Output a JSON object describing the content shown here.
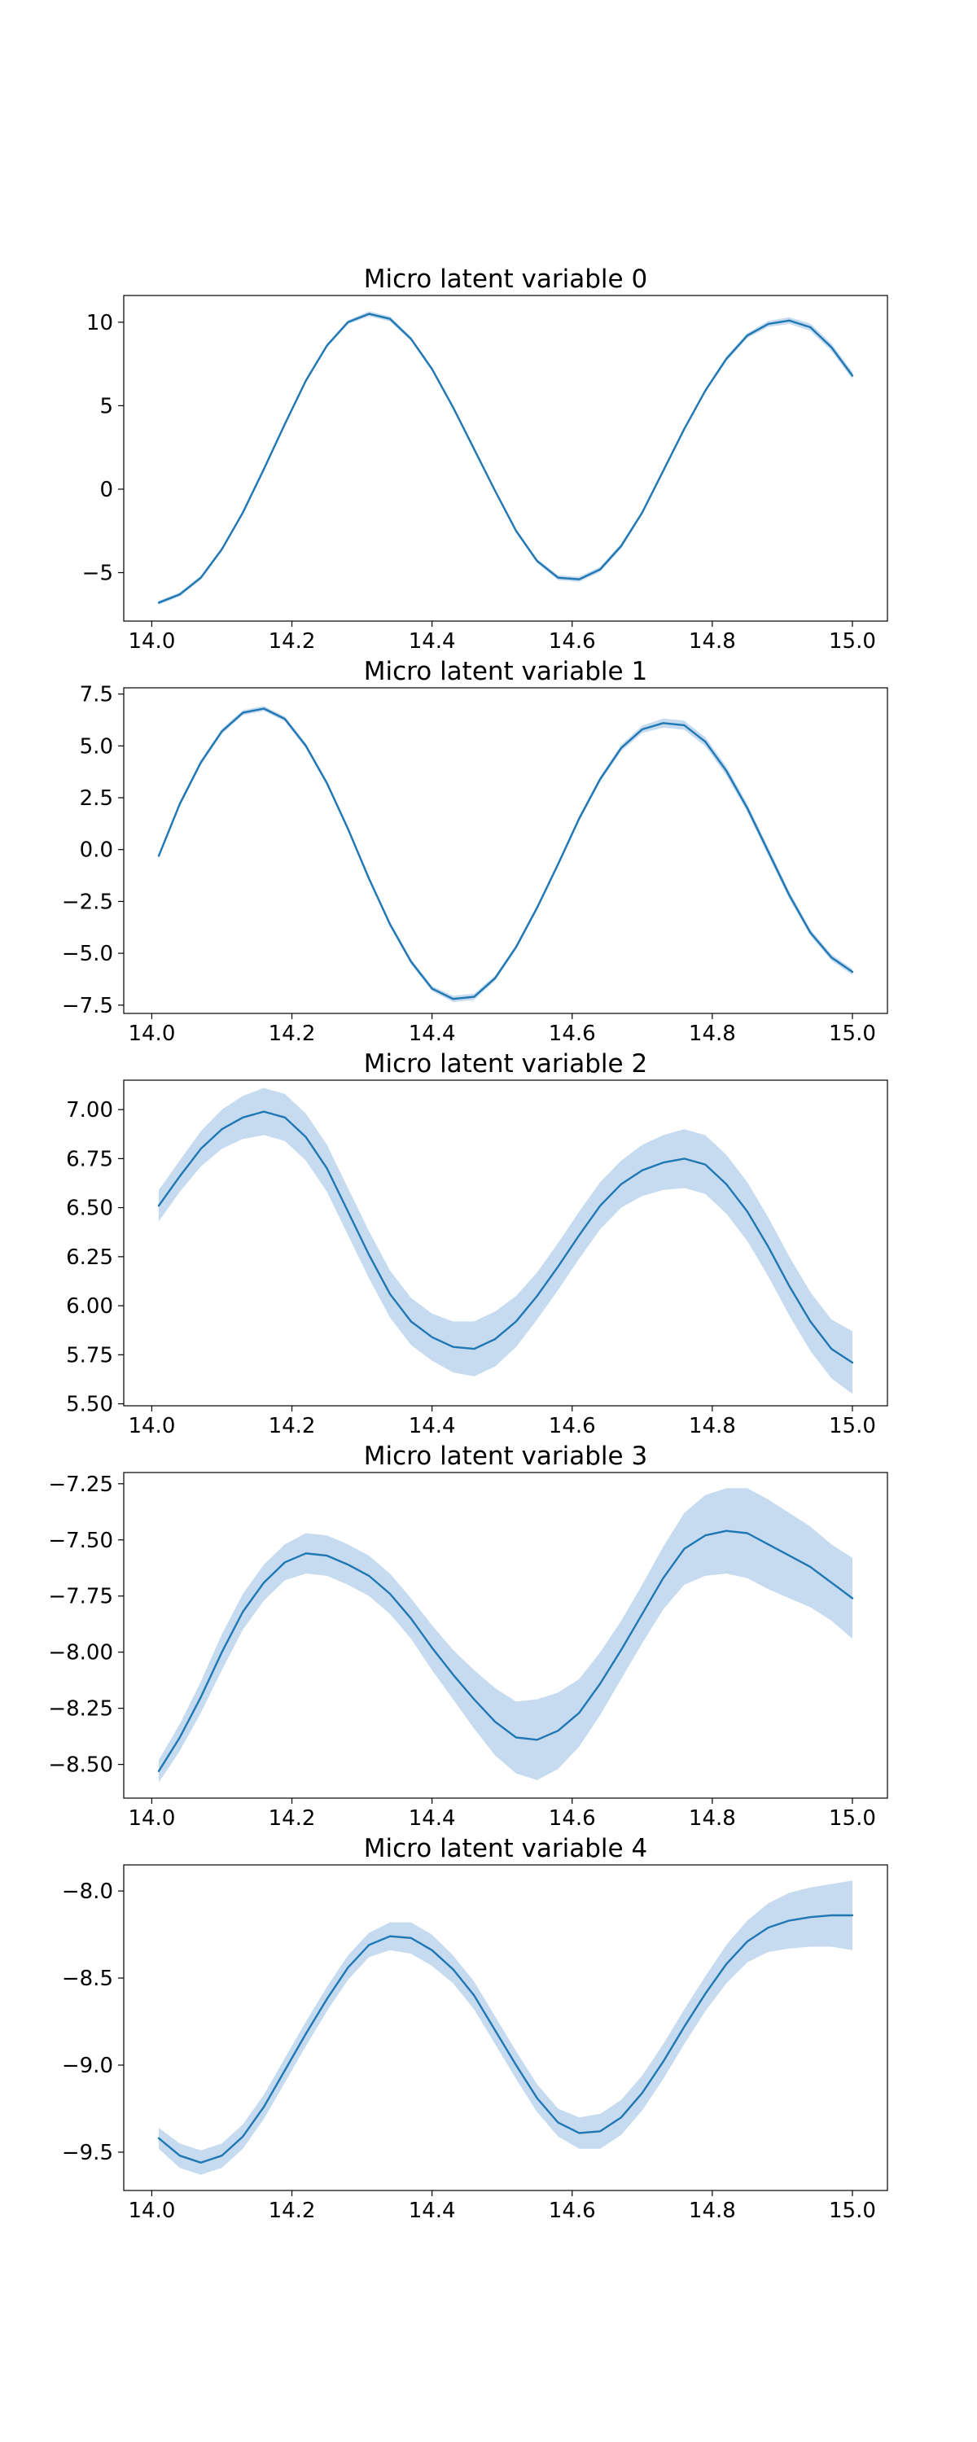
{
  "chart_data": [
    {
      "type": "line",
      "title": "Micro latent variable 0",
      "xlabel": "",
      "ylabel": "",
      "xlim": [
        13.96,
        15.05
      ],
      "ylim": [
        -7.9,
        11.6
      ],
      "xticks": [
        14.0,
        14.2,
        14.4,
        14.6,
        14.8,
        15.0
      ],
      "xtick_labels": [
        "14.0",
        "14.2",
        "14.4",
        "14.6",
        "14.8",
        "15.0"
      ],
      "yticks": [
        10,
        5,
        0,
        -5
      ],
      "ytick_labels": [
        "10",
        "5",
        "0",
        "−5"
      ],
      "grid": false,
      "band": true,
      "series": [
        {
          "x": [
            14.01,
            14.04,
            14.07,
            14.1,
            14.13,
            14.16,
            14.19,
            14.22,
            14.25,
            14.28,
            14.31,
            14.34,
            14.37,
            14.4,
            14.43,
            14.46,
            14.49,
            14.52,
            14.55,
            14.58,
            14.61,
            14.64,
            14.67,
            14.7,
            14.73,
            14.76,
            14.79,
            14.82,
            14.85,
            14.88,
            14.91,
            14.94,
            14.97,
            15.0
          ],
          "y": [
            -6.8,
            -6.3,
            -5.3,
            -3.6,
            -1.4,
            1.2,
            3.9,
            6.5,
            8.6,
            10.0,
            10.5,
            10.2,
            9.0,
            7.2,
            4.9,
            2.4,
            -0.1,
            -2.5,
            -4.3,
            -5.3,
            -5.4,
            -4.8,
            -3.4,
            -1.4,
            1.1,
            3.6,
            5.9,
            7.8,
            9.2,
            9.9,
            10.1,
            9.7,
            8.5,
            6.8
          ],
          "band_halfwidth": [
            0.12,
            0.12,
            0.12,
            0.12,
            0.12,
            0.12,
            0.12,
            0.12,
            0.12,
            0.12,
            0.15,
            0.15,
            0.12,
            0.12,
            0.12,
            0.12,
            0.12,
            0.12,
            0.12,
            0.15,
            0.15,
            0.15,
            0.15,
            0.12,
            0.12,
            0.12,
            0.12,
            0.15,
            0.15,
            0.18,
            0.2,
            0.22,
            0.22,
            0.22
          ]
        }
      ]
    },
    {
      "type": "line",
      "title": "Micro latent variable 1",
      "xlabel": "",
      "ylabel": "",
      "xlim": [
        13.96,
        15.05
      ],
      "ylim": [
        -7.9,
        7.8
      ],
      "xticks": [
        14.0,
        14.2,
        14.4,
        14.6,
        14.8,
        15.0
      ],
      "xtick_labels": [
        "14.0",
        "14.2",
        "14.4",
        "14.6",
        "14.8",
        "15.0"
      ],
      "yticks": [
        7.5,
        5.0,
        2.5,
        0.0,
        -2.5,
        -5.0,
        -7.5
      ],
      "ytick_labels": [
        "7.5",
        "5.0",
        "2.5",
        "0.0",
        "−2.5",
        "−5.0",
        "−7.5"
      ],
      "grid": false,
      "band": true,
      "series": [
        {
          "x": [
            14.01,
            14.04,
            14.07,
            14.1,
            14.13,
            14.16,
            14.19,
            14.22,
            14.25,
            14.28,
            14.31,
            14.34,
            14.37,
            14.4,
            14.43,
            14.46,
            14.49,
            14.52,
            14.55,
            14.58,
            14.61,
            14.64,
            14.67,
            14.7,
            14.73,
            14.76,
            14.79,
            14.82,
            14.85,
            14.88,
            14.91,
            14.94,
            14.97,
            15.0
          ],
          "y": [
            -0.3,
            2.2,
            4.2,
            5.7,
            6.6,
            6.8,
            6.3,
            5.0,
            3.2,
            1.0,
            -1.4,
            -3.6,
            -5.4,
            -6.7,
            -7.2,
            -7.1,
            -6.2,
            -4.7,
            -2.8,
            -0.7,
            1.5,
            3.4,
            4.9,
            5.8,
            6.1,
            6.0,
            5.2,
            3.8,
            2.0,
            -0.1,
            -2.2,
            -4.0,
            -5.2,
            -5.9
          ],
          "band_halfwidth": [
            0.12,
            0.12,
            0.12,
            0.12,
            0.12,
            0.12,
            0.12,
            0.12,
            0.12,
            0.12,
            0.12,
            0.12,
            0.12,
            0.12,
            0.15,
            0.15,
            0.12,
            0.12,
            0.12,
            0.12,
            0.12,
            0.12,
            0.15,
            0.18,
            0.22,
            0.22,
            0.22,
            0.22,
            0.2,
            0.2,
            0.18,
            0.15,
            0.15,
            0.15
          ]
        }
      ]
    },
    {
      "type": "line",
      "title": "Micro latent variable 2",
      "xlabel": "",
      "ylabel": "",
      "xlim": [
        13.96,
        15.05
      ],
      "ylim": [
        5.49,
        7.15
      ],
      "xticks": [
        14.0,
        14.2,
        14.4,
        14.6,
        14.8,
        15.0
      ],
      "xtick_labels": [
        "14.0",
        "14.2",
        "14.4",
        "14.6",
        "14.8",
        "15.0"
      ],
      "yticks": [
        7.0,
        6.75,
        6.5,
        6.25,
        6.0,
        5.75,
        5.5
      ],
      "ytick_labels": [
        "7.00",
        "6.75",
        "6.50",
        "6.25",
        "6.00",
        "5.75",
        "5.50"
      ],
      "grid": false,
      "band": true,
      "series": [
        {
          "x": [
            14.01,
            14.04,
            14.07,
            14.1,
            14.13,
            14.16,
            14.19,
            14.22,
            14.25,
            14.28,
            14.31,
            14.34,
            14.37,
            14.4,
            14.43,
            14.46,
            14.49,
            14.52,
            14.55,
            14.58,
            14.61,
            14.64,
            14.67,
            14.7,
            14.73,
            14.76,
            14.79,
            14.82,
            14.85,
            14.88,
            14.91,
            14.94,
            14.97,
            15.0
          ],
          "y": [
            6.51,
            6.66,
            6.8,
            6.9,
            6.96,
            6.99,
            6.96,
            6.86,
            6.7,
            6.48,
            6.26,
            6.06,
            5.92,
            5.84,
            5.79,
            5.78,
            5.83,
            5.92,
            6.05,
            6.2,
            6.36,
            6.51,
            6.62,
            6.69,
            6.73,
            6.75,
            6.72,
            6.62,
            6.48,
            6.3,
            6.1,
            5.92,
            5.78,
            5.71
          ],
          "band_halfwidth": [
            0.08,
            0.08,
            0.09,
            0.1,
            0.11,
            0.12,
            0.12,
            0.12,
            0.12,
            0.12,
            0.12,
            0.12,
            0.12,
            0.12,
            0.13,
            0.14,
            0.14,
            0.13,
            0.12,
            0.12,
            0.12,
            0.12,
            0.12,
            0.13,
            0.14,
            0.15,
            0.15,
            0.15,
            0.15,
            0.15,
            0.15,
            0.15,
            0.15,
            0.16
          ]
        }
      ]
    },
    {
      "type": "line",
      "title": "Micro latent variable 3",
      "xlabel": "",
      "ylabel": "",
      "xlim": [
        13.96,
        15.05
      ],
      "ylim": [
        -8.65,
        -7.2
      ],
      "xticks": [
        14.0,
        14.2,
        14.4,
        14.6,
        14.8,
        15.0
      ],
      "xtick_labels": [
        "14.0",
        "14.2",
        "14.4",
        "14.6",
        "14.8",
        "15.0"
      ],
      "yticks": [
        -7.25,
        -7.5,
        -7.75,
        -8.0,
        -8.25,
        -8.5
      ],
      "ytick_labels": [
        "−7.25",
        "−7.50",
        "−7.75",
        "−8.00",
        "−8.25",
        "−8.50"
      ],
      "grid": false,
      "band": true,
      "series": [
        {
          "x": [
            14.01,
            14.04,
            14.07,
            14.1,
            14.13,
            14.16,
            14.19,
            14.22,
            14.25,
            14.28,
            14.31,
            14.34,
            14.37,
            14.4,
            14.43,
            14.46,
            14.49,
            14.52,
            14.55,
            14.58,
            14.61,
            14.64,
            14.67,
            14.7,
            14.73,
            14.76,
            14.79,
            14.82,
            14.85,
            14.88,
            14.91,
            14.94,
            14.97,
            15.0
          ],
          "y": [
            -8.53,
            -8.38,
            -8.2,
            -8.0,
            -7.82,
            -7.69,
            -7.6,
            -7.56,
            -7.57,
            -7.61,
            -7.66,
            -7.74,
            -7.85,
            -7.98,
            -8.1,
            -8.21,
            -8.31,
            -8.38,
            -8.39,
            -8.35,
            -8.27,
            -8.14,
            -7.99,
            -7.83,
            -7.67,
            -7.54,
            -7.48,
            -7.46,
            -7.47,
            -7.52,
            -7.57,
            -7.62,
            -7.69,
            -7.76
          ],
          "band_halfwidth": [
            0.05,
            0.06,
            0.07,
            0.08,
            0.08,
            0.08,
            0.08,
            0.09,
            0.09,
            0.09,
            0.09,
            0.09,
            0.09,
            0.1,
            0.11,
            0.13,
            0.15,
            0.16,
            0.18,
            0.17,
            0.15,
            0.14,
            0.13,
            0.13,
            0.14,
            0.16,
            0.18,
            0.19,
            0.2,
            0.2,
            0.19,
            0.18,
            0.17,
            0.18
          ]
        }
      ]
    },
    {
      "type": "line",
      "title": "Micro latent variable 4",
      "xlabel": "",
      "ylabel": "",
      "xlim": [
        13.96,
        15.05
      ],
      "ylim": [
        -9.72,
        -7.85
      ],
      "xticks": [
        14.0,
        14.2,
        14.4,
        14.6,
        14.8,
        15.0
      ],
      "xtick_labels": [
        "14.0",
        "14.2",
        "14.4",
        "14.6",
        "14.8",
        "15.0"
      ],
      "yticks": [
        -8.0,
        -8.5,
        -9.0,
        -9.5
      ],
      "ytick_labels": [
        "−8.0",
        "−8.5",
        "−9.0",
        "−9.5"
      ],
      "grid": false,
      "band": true,
      "series": [
        {
          "x": [
            14.01,
            14.04,
            14.07,
            14.1,
            14.13,
            14.16,
            14.19,
            14.22,
            14.25,
            14.28,
            14.31,
            14.34,
            14.37,
            14.4,
            14.43,
            14.46,
            14.49,
            14.52,
            14.55,
            14.58,
            14.61,
            14.64,
            14.67,
            14.7,
            14.73,
            14.76,
            14.79,
            14.82,
            14.85,
            14.88,
            14.91,
            14.94,
            14.97,
            15.0
          ],
          "y": [
            -9.42,
            -9.52,
            -9.56,
            -9.52,
            -9.41,
            -9.24,
            -9.03,
            -8.82,
            -8.62,
            -8.44,
            -8.31,
            -8.26,
            -8.27,
            -8.34,
            -8.45,
            -8.6,
            -8.8,
            -9.0,
            -9.19,
            -9.33,
            -9.39,
            -9.38,
            -9.3,
            -9.16,
            -8.98,
            -8.78,
            -8.59,
            -8.42,
            -8.29,
            -8.21,
            -8.17,
            -8.15,
            -8.14,
            -8.14
          ],
          "band_halfwidth": [
            0.06,
            0.07,
            0.07,
            0.07,
            0.07,
            0.07,
            0.07,
            0.07,
            0.07,
            0.07,
            0.07,
            0.08,
            0.09,
            0.09,
            0.08,
            0.08,
            0.08,
            0.08,
            0.08,
            0.08,
            0.09,
            0.1,
            0.1,
            0.1,
            0.1,
            0.1,
            0.1,
            0.11,
            0.12,
            0.14,
            0.16,
            0.17,
            0.18,
            0.2
          ]
        }
      ]
    }
  ],
  "colors": {
    "line": "#1f77b4",
    "band": "#c6dbef",
    "axes": "#000000",
    "background": "#ffffff"
  }
}
